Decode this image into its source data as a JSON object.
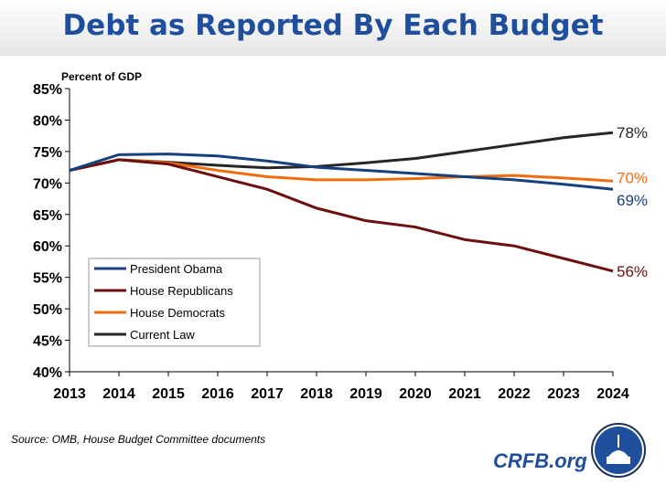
{
  "title": "Debt as Reported By Each Budget",
  "source": "Source: OMB, House Budget Committee documents",
  "brand": "CRFB.org",
  "chart_data": {
    "type": "line",
    "ylabel": "Percent of GDP",
    "ylim": [
      40,
      85
    ],
    "yticks": [
      "40%",
      "45%",
      "50%",
      "55%",
      "60%",
      "65%",
      "70%",
      "75%",
      "80%",
      "85%"
    ],
    "x": [
      2013,
      2014,
      2015,
      2016,
      2017,
      2018,
      2019,
      2020,
      2021,
      2022,
      2023,
      2024
    ],
    "legend_position": "bottom-left",
    "series": [
      {
        "name": "President Obama",
        "color": "#17407e",
        "end_label": "69%",
        "values": [
          72,
          74.5,
          74.6,
          74.3,
          73.5,
          72.5,
          72,
          71.5,
          71,
          70.5,
          69.8,
          69
        ]
      },
      {
        "name": "House Republicans",
        "color": "#6b0f0f",
        "end_label": "56%",
        "values": [
          72,
          73.7,
          73,
          71,
          69,
          66,
          64,
          63,
          61,
          60,
          58,
          56
        ]
      },
      {
        "name": "House Democrats",
        "color": "#f26c0d",
        "end_label": "70%",
        "values": [
          72,
          73.7,
          73.2,
          72,
          71,
          70.5,
          70.5,
          70.7,
          71,
          71.2,
          70.8,
          70.3
        ]
      },
      {
        "name": "Current Law",
        "color": "#262626",
        "end_label": "78%",
        "values": [
          72,
          73.7,
          73.3,
          72.8,
          72.4,
          72.6,
          73.2,
          73.9,
          75,
          76.1,
          77.2,
          78
        ]
      }
    ]
  }
}
